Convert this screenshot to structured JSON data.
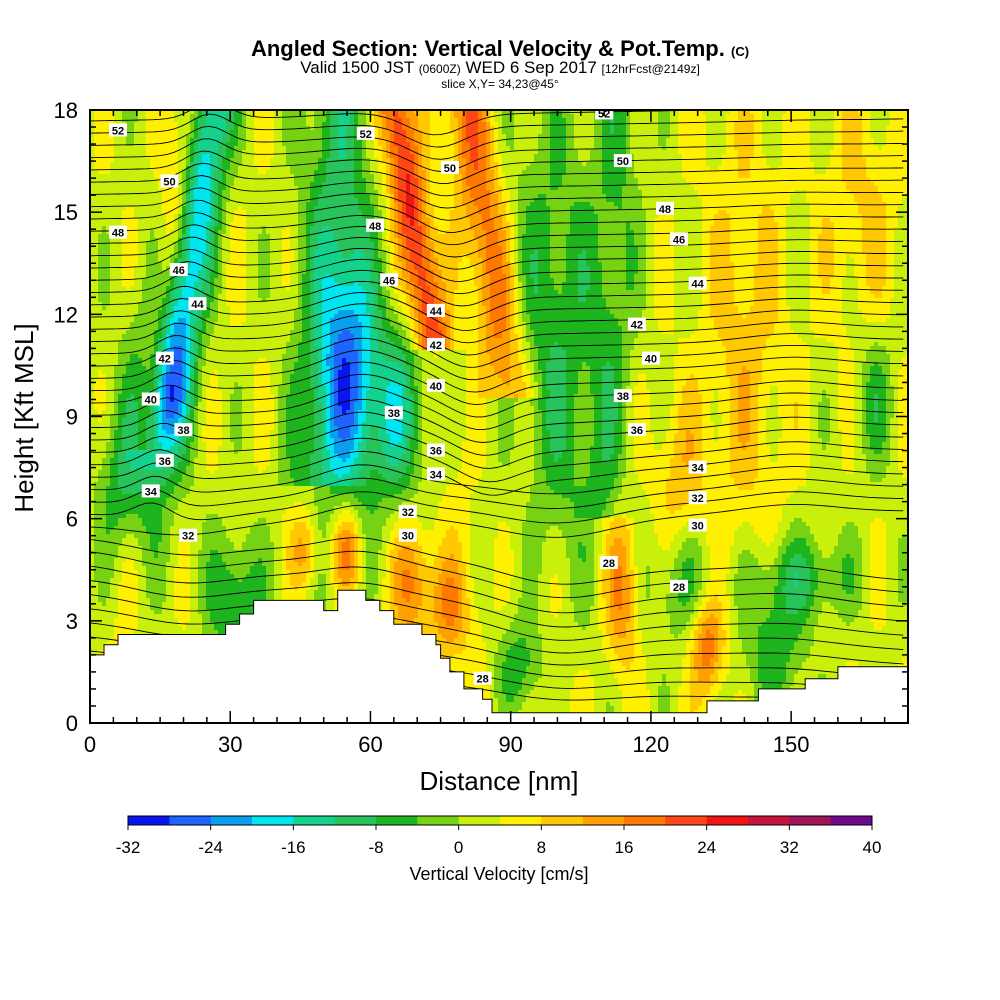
{
  "header": {
    "title_main": "Angled Section: Vertical Velocity & Pot.Temp.",
    "title_unit": "(C)",
    "valid_prefix": "Valid 1500 JST",
    "valid_z": "(0600Z)",
    "valid_date": "WED 6 Sep 2017",
    "valid_fcst": "[12hrFcst@2149z]",
    "slice": "slice X,Y= 34,23@45°"
  },
  "chart_data": {
    "type": "heatmap",
    "xlabel": "Distance [nm]",
    "ylabel": "Height [Kft MSL]",
    "xlim": [
      0,
      175
    ],
    "ylim": [
      0,
      18
    ],
    "x_ticks": [
      "0",
      "30",
      "60",
      "90",
      "120",
      "150"
    ],
    "y_ticks": [
      "0",
      "3",
      "6",
      "9",
      "12",
      "15",
      "18"
    ],
    "colorbar": {
      "label": "Vertical Velocity [cm/s]",
      "ticks": [
        "-32",
        "-24",
        "-16",
        "-8",
        "0",
        "8",
        "16",
        "24",
        "32",
        "40"
      ],
      "levels": [
        -32,
        -28,
        -24,
        -20,
        -16,
        -12,
        -8,
        -4,
        0,
        4,
        8,
        12,
        16,
        20,
        24,
        28,
        32,
        36,
        40
      ],
      "colors": [
        "#0a14f0",
        "#1e64ff",
        "#0aa0f0",
        "#00e6f0",
        "#14d28c",
        "#28c35a",
        "#1eb41e",
        "#78d214",
        "#c8f00a",
        "#fff000",
        "#ffc800",
        "#ffa000",
        "#ff7800",
        "#ff4614",
        "#f01414",
        "#c8143c",
        "#a0145a",
        "#6e0a8c"
      ]
    },
    "velocity_features": [
      {
        "x": 25,
        "y_range": [
          10,
          18
        ],
        "value": -16,
        "kind": "downdraft band"
      },
      {
        "x": 55,
        "y_range": [
          8,
          12.5
        ],
        "value": -16,
        "kind": "downdraft core"
      },
      {
        "x": 68,
        "y_range": [
          15,
          18
        ],
        "value": 24,
        "kind": "updraft core"
      },
      {
        "x": 85,
        "y_range": [
          12,
          17
        ],
        "value": 16,
        "kind": "updraft band"
      },
      {
        "x": 55,
        "y_range": [
          4.5,
          5.5
        ],
        "value": 20,
        "kind": "updraft cell"
      },
      {
        "x": 132,
        "y_range": [
          1.5,
          3
        ],
        "value": 20,
        "kind": "updraft cell"
      },
      {
        "x": 115,
        "y_range": [
          3.5,
          5
        ],
        "value": 16,
        "kind": "updraft cell"
      }
    ],
    "isentrope_labels": [
      {
        "value": "52",
        "x": 6,
        "y": 17.4
      },
      {
        "value": "50",
        "x": 17,
        "y": 15.9
      },
      {
        "value": "48",
        "x": 6,
        "y": 14.4
      },
      {
        "value": "46",
        "x": 19,
        "y": 13.3
      },
      {
        "value": "44",
        "x": 23,
        "y": 12.3
      },
      {
        "value": "42",
        "x": 16,
        "y": 10.7
      },
      {
        "value": "40",
        "x": 13,
        "y": 9.5
      },
      {
        "value": "38",
        "x": 20,
        "y": 8.6
      },
      {
        "value": "36",
        "x": 16,
        "y": 7.7
      },
      {
        "value": "34",
        "x": 13,
        "y": 6.8
      },
      {
        "value": "32",
        "x": 21,
        "y": 5.5
      },
      {
        "value": "52",
        "x": 59,
        "y": 17.3
      },
      {
        "value": "50",
        "x": 77,
        "y": 16.3
      },
      {
        "value": "48",
        "x": 61,
        "y": 14.6
      },
      {
        "value": "46",
        "x": 64,
        "y": 13.0
      },
      {
        "value": "44",
        "x": 74,
        "y": 12.1
      },
      {
        "value": "42",
        "x": 74,
        "y": 11.1
      },
      {
        "value": "40",
        "x": 74,
        "y": 9.9
      },
      {
        "value": "38",
        "x": 65,
        "y": 9.1
      },
      {
        "value": "36",
        "x": 74,
        "y": 8.0
      },
      {
        "value": "34",
        "x": 74,
        "y": 7.3
      },
      {
        "value": "32",
        "x": 68,
        "y": 6.2
      },
      {
        "value": "30",
        "x": 68,
        "y": 5.5
      },
      {
        "value": "28",
        "x": 84,
        "y": 1.3
      },
      {
        "value": "52",
        "x": 110,
        "y": 17.9
      },
      {
        "value": "50",
        "x": 114,
        "y": 16.5
      },
      {
        "value": "48",
        "x": 123,
        "y": 15.1
      },
      {
        "value": "46",
        "x": 126,
        "y": 14.2
      },
      {
        "value": "44",
        "x": 130,
        "y": 12.9
      },
      {
        "value": "42",
        "x": 117,
        "y": 11.7
      },
      {
        "value": "40",
        "x": 120,
        "y": 10.7
      },
      {
        "value": "38",
        "x": 114,
        "y": 9.6
      },
      {
        "value": "36",
        "x": 117,
        "y": 8.6
      },
      {
        "value": "34",
        "x": 130,
        "y": 7.5
      },
      {
        "value": "32",
        "x": 130,
        "y": 6.6
      },
      {
        "value": "30",
        "x": 130,
        "y": 5.8
      },
      {
        "value": "28",
        "x": 111,
        "y": 4.7
      },
      {
        "value": "28",
        "x": 126,
        "y": 4.0
      }
    ],
    "terrain": [
      [
        0,
        2
      ],
      [
        3,
        2
      ],
      [
        3,
        2.3
      ],
      [
        6,
        2.3
      ],
      [
        6,
        2.6
      ],
      [
        29,
        2.6
      ],
      [
        29,
        2.9
      ],
      [
        32,
        2.9
      ],
      [
        32,
        3.2
      ],
      [
        35,
        3.2
      ],
      [
        35,
        3.6
      ],
      [
        50,
        3.6
      ],
      [
        50,
        3.3
      ],
      [
        53,
        3.3
      ],
      [
        53,
        3.9
      ],
      [
        59,
        3.9
      ],
      [
        59,
        3.6
      ],
      [
        62,
        3.6
      ],
      [
        62,
        3.3
      ],
      [
        65,
        3.3
      ],
      [
        65,
        2.9
      ],
      [
        71,
        2.9
      ],
      [
        71,
        2.6
      ],
      [
        74,
        2.6
      ],
      [
        74,
        2.3
      ],
      [
        75,
        2.3
      ],
      [
        75,
        1.9
      ],
      [
        77,
        1.9
      ],
      [
        77,
        1.5
      ],
      [
        80,
        1.5
      ],
      [
        80,
        1
      ],
      [
        84,
        1
      ],
      [
        84,
        0.7
      ],
      [
        86,
        0.7
      ],
      [
        86,
        0.3
      ],
      [
        132,
        0.3
      ],
      [
        132,
        0.65
      ],
      [
        143,
        0.65
      ],
      [
        143,
        1
      ],
      [
        153,
        1
      ],
      [
        153,
        1.3
      ],
      [
        160,
        1.3
      ],
      [
        160,
        1.65
      ],
      [
        175,
        1.65
      ]
    ]
  }
}
